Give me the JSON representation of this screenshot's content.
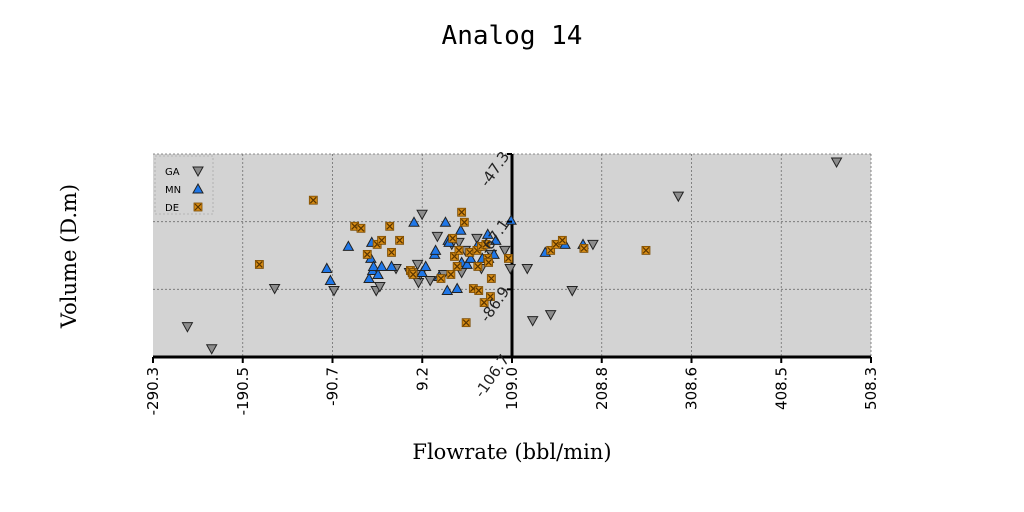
{
  "chart_data": {
    "type": "scatter",
    "title": "Analog 14",
    "xlabel": "Flowrate (bbl/min)",
    "ylabel": "Volume (D.m)",
    "xlim": [
      -290.3,
      508.3
    ],
    "ylim": [
      -131.1,
      -30.0
    ],
    "x_ticks": [
      "-290.3",
      "-190.5",
      "-90.7",
      "9.2",
      "109.0",
      "208.8",
      "308.6",
      "408.5",
      "508.3"
    ],
    "y_ticks": [
      "-47.3",
      "-67.1",
      "-86.9",
      "-106.7"
    ],
    "grid": true,
    "legend": "top-left",
    "series": [
      {
        "name": "GA",
        "marker": "triangle-down",
        "color": "#8c8c8c",
        "points": [
          [
            -252,
            -116
          ],
          [
            -225,
            -127
          ],
          [
            -155,
            -97
          ],
          [
            -89,
            -98
          ],
          [
            -42,
            -98
          ],
          [
            -38,
            -96
          ],
          [
            -20,
            -87
          ],
          [
            -5,
            -89
          ],
          [
            4,
            -85
          ],
          [
            5,
            -94
          ],
          [
            7,
            -90
          ],
          [
            9,
            -60
          ],
          [
            18,
            -93
          ],
          [
            26,
            -71
          ],
          [
            33,
            -90
          ],
          [
            42,
            -75
          ],
          [
            50,
            -74
          ],
          [
            53,
            -89
          ],
          [
            57,
            -78
          ],
          [
            70,
            -72
          ],
          [
            75,
            -87
          ],
          [
            80,
            -83
          ],
          [
            86,
            -80
          ],
          [
            101,
            -78
          ],
          [
            107,
            -87
          ],
          [
            126,
            -87
          ],
          [
            132,
            -113
          ],
          [
            152,
            -110
          ],
          [
            176,
            -98
          ],
          [
            199,
            -75
          ],
          [
            294,
            -51
          ],
          [
            470,
            -34
          ]
        ]
      },
      {
        "name": "MN",
        "marker": "triangle-up",
        "color": "#1f77e8",
        "points": [
          [
            -97,
            -87
          ],
          [
            -93,
            -93
          ],
          [
            -73,
            -76
          ],
          [
            -50,
            -92
          ],
          [
            -48,
            -82
          ],
          [
            -47,
            -74
          ],
          [
            -46,
            -88
          ],
          [
            -45,
            -86
          ],
          [
            -40,
            -90
          ],
          [
            -36,
            -86
          ],
          [
            -25,
            -86
          ],
          [
            0,
            -64
          ],
          [
            9,
            -89
          ],
          [
            13,
            -86
          ],
          [
            23,
            -80
          ],
          [
            24,
            -78
          ],
          [
            28,
            -91
          ],
          [
            35,
            -64
          ],
          [
            37,
            -98
          ],
          [
            38,
            -73
          ],
          [
            39,
            -74
          ],
          [
            48,
            -97
          ],
          [
            52,
            -68
          ],
          [
            53,
            -84
          ],
          [
            59,
            -85
          ],
          [
            63,
            -82
          ],
          [
            70,
            -76
          ],
          [
            76,
            -82
          ],
          [
            82,
            -70
          ],
          [
            83,
            -82
          ],
          [
            89,
            -80
          ],
          [
            91,
            -73
          ],
          [
            108,
            -63
          ],
          [
            146,
            -79
          ],
          [
            168,
            -75
          ],
          [
            188,
            -75
          ]
        ]
      },
      {
        "name": "DE",
        "marker": "x-square",
        "color": "#d48a14",
        "points": [
          [
            -172,
            -85
          ],
          [
            -112,
            -53
          ],
          [
            -66,
            -66
          ],
          [
            -59,
            -67
          ],
          [
            -52,
            -80
          ],
          [
            -41,
            -75
          ],
          [
            -36,
            -73
          ],
          [
            -27,
            -66
          ],
          [
            -25,
            -79
          ],
          [
            -16,
            -73
          ],
          [
            -4,
            -88
          ],
          [
            -2,
            -89
          ],
          [
            -1,
            -90
          ],
          [
            30,
            -92
          ],
          [
            41,
            -90
          ],
          [
            43,
            -72
          ],
          [
            45,
            -81
          ],
          [
            48,
            -86
          ],
          [
            50,
            -78
          ],
          [
            53,
            -59
          ],
          [
            56,
            -64
          ],
          [
            58,
            -114
          ],
          [
            62,
            -79
          ],
          [
            66,
            -97
          ],
          [
            70,
            -78
          ],
          [
            71,
            -86
          ],
          [
            72,
            -98
          ],
          [
            75,
            -76
          ],
          [
            78,
            -104
          ],
          [
            80,
            -75
          ],
          [
            82,
            -82
          ],
          [
            83,
            -84
          ],
          [
            85,
            -101
          ],
          [
            86,
            -92
          ],
          [
            105,
            -82
          ],
          [
            152,
            -78
          ],
          [
            158,
            -75
          ],
          [
            165,
            -73
          ],
          [
            189,
            -77
          ],
          [
            258,
            -78
          ]
        ]
      }
    ]
  },
  "colors": {
    "plot_background": "#d3d3d3",
    "grid": "#6e6e6e",
    "axis": "#000000"
  }
}
